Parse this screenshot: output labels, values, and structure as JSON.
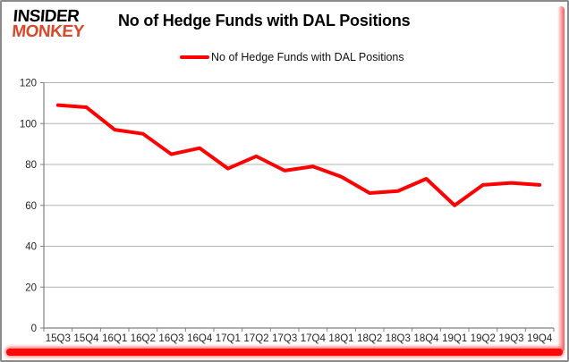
{
  "header": {
    "logo_line1": "INSIDER",
    "logo_line2": "MONKEY",
    "title": "No of Hedge Funds with DAL Positions"
  },
  "legend": {
    "label": "No of Hedge Funds with DAL Positions"
  },
  "colors": {
    "series_line": "#ff0000",
    "logo_accent": "#d8492b",
    "gridline": "#b3b3b3",
    "axis": "#7f7f7f",
    "tick_label": "#262626",
    "frame_border": "#8a8a8a",
    "edge_glow": "#fb0808"
  },
  "chart_data": {
    "type": "line",
    "title": "No of Hedge Funds with DAL Positions",
    "categories": [
      "15Q3",
      "15Q4",
      "16Q1",
      "16Q2",
      "16Q3",
      "16Q4",
      "17Q1",
      "17Q2",
      "17Q3",
      "17Q4",
      "18Q1",
      "18Q2",
      "18Q3",
      "18Q4",
      "19Q1",
      "19Q2",
      "19Q3",
      "19Q4"
    ],
    "series": [
      {
        "name": "No of Hedge Funds with DAL Positions",
        "color": "#ff0000",
        "values": [
          109,
          108,
          97,
          95,
          85,
          88,
          78,
          84,
          77,
          79,
          74,
          66,
          67,
          73,
          60,
          70,
          71,
          70
        ]
      }
    ],
    "xlabel": "",
    "ylabel": "",
    "ylim": [
      0,
      120
    ],
    "yticks": [
      0,
      20,
      40,
      60,
      80,
      100,
      120
    ],
    "grid": true,
    "legend_position": "top"
  }
}
